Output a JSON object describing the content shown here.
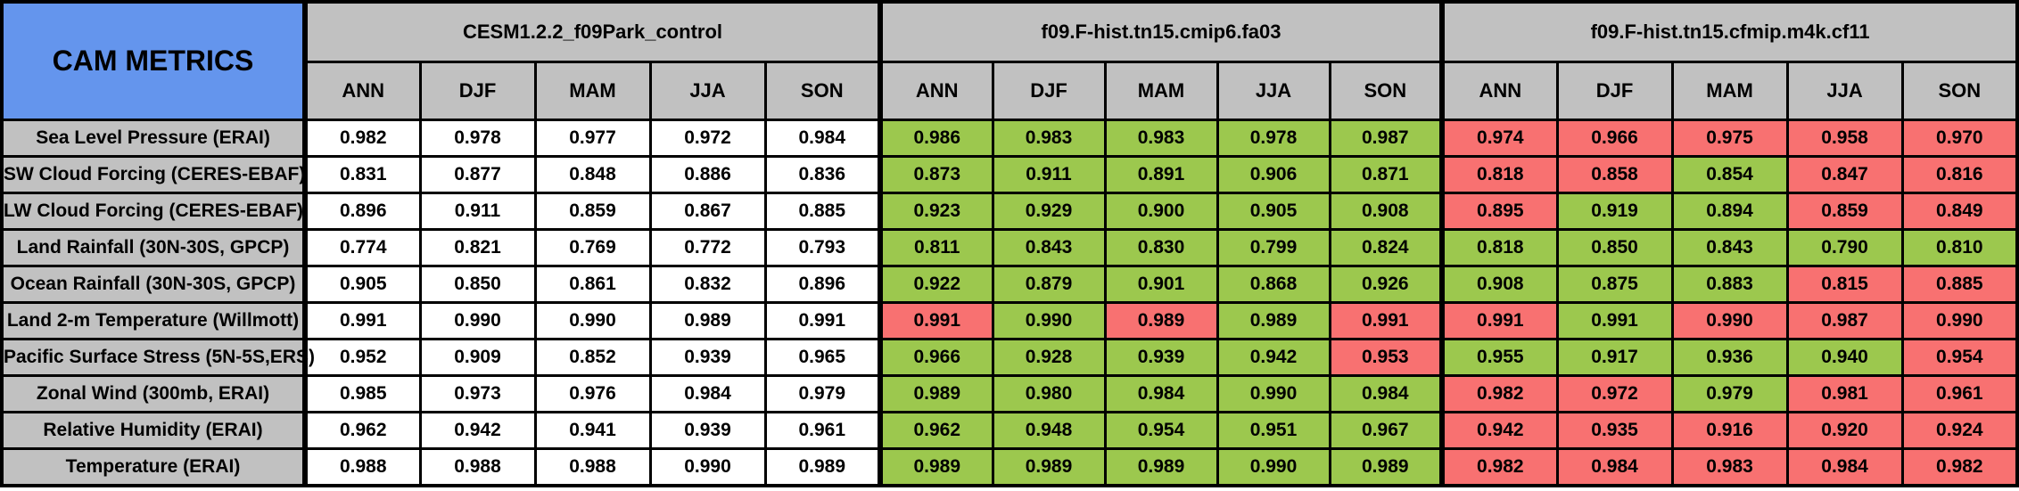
{
  "colors": {
    "title_bg": "#6495ED",
    "header_bg": "#C1C1C1",
    "border": "#000000",
    "cell_colors": {
      "w": "#FFFFFF",
      "g": "#9CC84E",
      "r": "#F87171"
    }
  },
  "chart_data": {
    "type": "table",
    "title": "CAM METRICS",
    "groups": [
      {
        "name": "CESM1.2.2_f09Park_control"
      },
      {
        "name": "f09.F-hist.tn15.cmip6.fa03"
      },
      {
        "name": "f09.F-hist.tn15.cfmip.m4k.cf11"
      }
    ],
    "seasons": [
      "ANN",
      "DJF",
      "MAM",
      "JJA",
      "SON"
    ],
    "rows": [
      {
        "label": "Sea Level Pressure (ERAI)",
        "series": [
          {
            "values": [
              "0.982",
              "0.978",
              "0.977",
              "0.972",
              "0.984"
            ],
            "colors": [
              "w",
              "w",
              "w",
              "w",
              "w"
            ]
          },
          {
            "values": [
              "0.986",
              "0.983",
              "0.983",
              "0.978",
              "0.987"
            ],
            "colors": [
              "g",
              "g",
              "g",
              "g",
              "g"
            ]
          },
          {
            "values": [
              "0.974",
              "0.966",
              "0.975",
              "0.958",
              "0.970"
            ],
            "colors": [
              "r",
              "r",
              "r",
              "r",
              "r"
            ]
          }
        ]
      },
      {
        "label": "SW Cloud Forcing (CERES-EBAF)",
        "series": [
          {
            "values": [
              "0.831",
              "0.877",
              "0.848",
              "0.886",
              "0.836"
            ],
            "colors": [
              "w",
              "w",
              "w",
              "w",
              "w"
            ]
          },
          {
            "values": [
              "0.873",
              "0.911",
              "0.891",
              "0.906",
              "0.871"
            ],
            "colors": [
              "g",
              "g",
              "g",
              "g",
              "g"
            ]
          },
          {
            "values": [
              "0.818",
              "0.858",
              "0.854",
              "0.847",
              "0.816"
            ],
            "colors": [
              "r",
              "r",
              "g",
              "r",
              "r"
            ]
          }
        ]
      },
      {
        "label": "LW Cloud Forcing (CERES-EBAF)",
        "series": [
          {
            "values": [
              "0.896",
              "0.911",
              "0.859",
              "0.867",
              "0.885"
            ],
            "colors": [
              "w",
              "w",
              "w",
              "w",
              "w"
            ]
          },
          {
            "values": [
              "0.923",
              "0.929",
              "0.900",
              "0.905",
              "0.908"
            ],
            "colors": [
              "g",
              "g",
              "g",
              "g",
              "g"
            ]
          },
          {
            "values": [
              "0.895",
              "0.919",
              "0.894",
              "0.859",
              "0.849"
            ],
            "colors": [
              "r",
              "g",
              "g",
              "r",
              "r"
            ]
          }
        ]
      },
      {
        "label": "Land Rainfall (30N-30S, GPCP)",
        "series": [
          {
            "values": [
              "0.774",
              "0.821",
              "0.769",
              "0.772",
              "0.793"
            ],
            "colors": [
              "w",
              "w",
              "w",
              "w",
              "w"
            ]
          },
          {
            "values": [
              "0.811",
              "0.843",
              "0.830",
              "0.799",
              "0.824"
            ],
            "colors": [
              "g",
              "g",
              "g",
              "g",
              "g"
            ]
          },
          {
            "values": [
              "0.818",
              "0.850",
              "0.843",
              "0.790",
              "0.810"
            ],
            "colors": [
              "g",
              "g",
              "g",
              "g",
              "g"
            ]
          }
        ]
      },
      {
        "label": "Ocean Rainfall (30N-30S, GPCP)",
        "series": [
          {
            "values": [
              "0.905",
              "0.850",
              "0.861",
              "0.832",
              "0.896"
            ],
            "colors": [
              "w",
              "w",
              "w",
              "w",
              "w"
            ]
          },
          {
            "values": [
              "0.922",
              "0.879",
              "0.901",
              "0.868",
              "0.926"
            ],
            "colors": [
              "g",
              "g",
              "g",
              "g",
              "g"
            ]
          },
          {
            "values": [
              "0.908",
              "0.875",
              "0.883",
              "0.815",
              "0.885"
            ],
            "colors": [
              "g",
              "g",
              "g",
              "r",
              "r"
            ]
          }
        ]
      },
      {
        "label": "Land 2-m Temperature (Willmott)",
        "series": [
          {
            "values": [
              "0.991",
              "0.990",
              "0.990",
              "0.989",
              "0.991"
            ],
            "colors": [
              "w",
              "w",
              "w",
              "w",
              "w"
            ]
          },
          {
            "values": [
              "0.991",
              "0.990",
              "0.989",
              "0.989",
              "0.991"
            ],
            "colors": [
              "r",
              "g",
              "r",
              "g",
              "r"
            ]
          },
          {
            "values": [
              "0.991",
              "0.991",
              "0.990",
              "0.987",
              "0.990"
            ],
            "colors": [
              "r",
              "g",
              "r",
              "r",
              "r"
            ]
          }
        ]
      },
      {
        "label": "Pacific Surface Stress (5N-5S,ERS)",
        "series": [
          {
            "values": [
              "0.952",
              "0.909",
              "0.852",
              "0.939",
              "0.965"
            ],
            "colors": [
              "w",
              "w",
              "w",
              "w",
              "w"
            ]
          },
          {
            "values": [
              "0.966",
              "0.928",
              "0.939",
              "0.942",
              "0.953"
            ],
            "colors": [
              "g",
              "g",
              "g",
              "g",
              "r"
            ]
          },
          {
            "values": [
              "0.955",
              "0.917",
              "0.936",
              "0.940",
              "0.954"
            ],
            "colors": [
              "g",
              "g",
              "g",
              "g",
              "r"
            ]
          }
        ]
      },
      {
        "label": "Zonal Wind (300mb, ERAI)",
        "series": [
          {
            "values": [
              "0.985",
              "0.973",
              "0.976",
              "0.984",
              "0.979"
            ],
            "colors": [
              "w",
              "w",
              "w",
              "w",
              "w"
            ]
          },
          {
            "values": [
              "0.989",
              "0.980",
              "0.984",
              "0.990",
              "0.984"
            ],
            "colors": [
              "g",
              "g",
              "g",
              "g",
              "g"
            ]
          },
          {
            "values": [
              "0.982",
              "0.972",
              "0.979",
              "0.981",
              "0.961"
            ],
            "colors": [
              "r",
              "r",
              "g",
              "r",
              "r"
            ]
          }
        ]
      },
      {
        "label": "Relative Humidity (ERAI)",
        "series": [
          {
            "values": [
              "0.962",
              "0.942",
              "0.941",
              "0.939",
              "0.961"
            ],
            "colors": [
              "w",
              "w",
              "w",
              "w",
              "w"
            ]
          },
          {
            "values": [
              "0.962",
              "0.948",
              "0.954",
              "0.951",
              "0.967"
            ],
            "colors": [
              "g",
              "g",
              "g",
              "g",
              "g"
            ]
          },
          {
            "values": [
              "0.942",
              "0.935",
              "0.916",
              "0.920",
              "0.924"
            ],
            "colors": [
              "r",
              "r",
              "r",
              "r",
              "r"
            ]
          }
        ]
      },
      {
        "label": "Temperature (ERAI)",
        "series": [
          {
            "values": [
              "0.988",
              "0.988",
              "0.988",
              "0.990",
              "0.989"
            ],
            "colors": [
              "w",
              "w",
              "w",
              "w",
              "w"
            ]
          },
          {
            "values": [
              "0.989",
              "0.989",
              "0.989",
              "0.990",
              "0.989"
            ],
            "colors": [
              "g",
              "g",
              "g",
              "g",
              "g"
            ]
          },
          {
            "values": [
              "0.982",
              "0.984",
              "0.983",
              "0.984",
              "0.982"
            ],
            "colors": [
              "r",
              "r",
              "r",
              "r",
              "r"
            ]
          }
        ]
      }
    ]
  }
}
